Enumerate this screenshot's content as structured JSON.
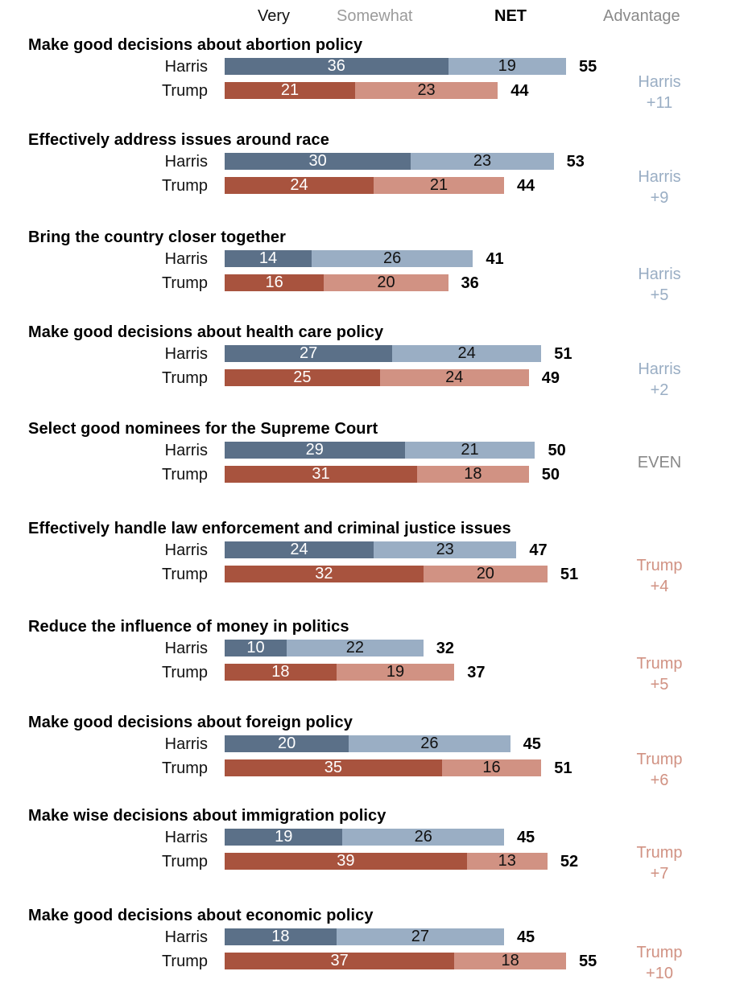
{
  "chart_data": {
    "type": "bar",
    "subtype": "stacked-horizontal-diverging-pairs",
    "column_headers": {
      "very": "Very",
      "somewhat": "Somewhat",
      "net": "NET",
      "advantage": "Advantage"
    },
    "series_names": [
      "Very",
      "Somewhat"
    ],
    "candidates": [
      "Harris",
      "Trump"
    ],
    "colors": {
      "harris_very": "#5b7088",
      "harris_somewhat": "#9aaec4",
      "trump_very": "#a8533e",
      "trump_somewhat": "#d19283",
      "even": "#888888"
    },
    "items": [
      {
        "title": "Make good decisions about abortion policy",
        "harris": {
          "label": "Harris",
          "very": 36,
          "somewhat": 19,
          "net": 55
        },
        "trump": {
          "label": "Trump",
          "very": 21,
          "somewhat": 23,
          "net": 44
        },
        "advantage": {
          "who": "harris",
          "line1": "Harris",
          "line2": "+11"
        }
      },
      {
        "title": "Effectively address issues around race",
        "harris": {
          "label": "Harris",
          "very": 30,
          "somewhat": 23,
          "net": 53
        },
        "trump": {
          "label": "Trump",
          "very": 24,
          "somewhat": 21,
          "net": 44
        },
        "advantage": {
          "who": "harris",
          "line1": "Harris",
          "line2": "+9"
        }
      },
      {
        "title": "Bring the country closer together",
        "harris": {
          "label": "Harris",
          "very": 14,
          "somewhat": 26,
          "net": 41
        },
        "trump": {
          "label": "Trump",
          "very": 16,
          "somewhat": 20,
          "net": 36
        },
        "advantage": {
          "who": "harris",
          "line1": "Harris",
          "line2": "+5"
        }
      },
      {
        "title": "Make good decisions about health care policy",
        "harris": {
          "label": "Harris",
          "very": 27,
          "somewhat": 24,
          "net": 51
        },
        "trump": {
          "label": "Trump",
          "very": 25,
          "somewhat": 24,
          "net": 49
        },
        "advantage": {
          "who": "harris",
          "line1": "Harris",
          "line2": "+2"
        }
      },
      {
        "title": "Select good nominees for the Supreme Court",
        "harris": {
          "label": "Harris",
          "very": 29,
          "somewhat": 21,
          "net": 50
        },
        "trump": {
          "label": "Trump",
          "very": 31,
          "somewhat": 18,
          "net": 50
        },
        "advantage": {
          "who": "even",
          "line1": "EVEN",
          "line2": ""
        }
      },
      {
        "title": "Effectively handle law enforcement and criminal justice issues",
        "harris": {
          "label": "Harris",
          "very": 24,
          "somewhat": 23,
          "net": 47
        },
        "trump": {
          "label": "Trump",
          "very": 32,
          "somewhat": 20,
          "net": 51
        },
        "advantage": {
          "who": "trump",
          "line1": "Trump",
          "line2": "+4"
        }
      },
      {
        "title": "Reduce the influence of money in politics",
        "harris": {
          "label": "Harris",
          "very": 10,
          "somewhat": 22,
          "net": 32
        },
        "trump": {
          "label": "Trump",
          "very": 18,
          "somewhat": 19,
          "net": 37
        },
        "advantage": {
          "who": "trump",
          "line1": "Trump",
          "line2": "+5"
        }
      },
      {
        "title": "Make good decisions about foreign policy",
        "harris": {
          "label": "Harris",
          "very": 20,
          "somewhat": 26,
          "net": 45
        },
        "trump": {
          "label": "Trump",
          "very": 35,
          "somewhat": 16,
          "net": 51
        },
        "advantage": {
          "who": "trump",
          "line1": "Trump",
          "line2": "+6"
        }
      },
      {
        "title": "Make wise decisions about immigration policy",
        "harris": {
          "label": "Harris",
          "very": 19,
          "somewhat": 26,
          "net": 45
        },
        "trump": {
          "label": "Trump",
          "very": 39,
          "somewhat": 13,
          "net": 52
        },
        "advantage": {
          "who": "trump",
          "line1": "Trump",
          "line2": "+7"
        }
      },
      {
        "title": "Make good decisions about economic policy",
        "harris": {
          "label": "Harris",
          "very": 18,
          "somewhat": 27,
          "net": 45
        },
        "trump": {
          "label": "Trump",
          "very": 37,
          "somewhat": 18,
          "net": 55
        },
        "advantage": {
          "who": "trump",
          "line1": "Trump",
          "line2": "+10"
        }
      }
    ],
    "xlim": [
      0,
      60
    ],
    "grid": false,
    "legend": "top (column headers)"
  }
}
